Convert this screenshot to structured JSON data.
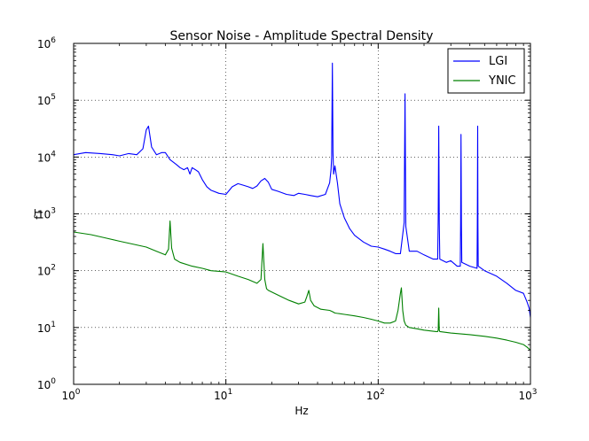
{
  "chart_data": {
    "type": "line",
    "title": "Sensor Noise - Amplitude Spectral Density",
    "xlabel": "Hz",
    "ylabel": "fT",
    "xscale": "log",
    "yscale": "log",
    "xlim": [
      1,
      1000
    ],
    "ylim": [
      1,
      1000000
    ],
    "grid": true,
    "legend_position": "top-right",
    "x_ticks": [
      {
        "value": 1,
        "base": "10",
        "exp": "0"
      },
      {
        "value": 10,
        "base": "10",
        "exp": "1"
      },
      {
        "value": 100,
        "base": "10",
        "exp": "2"
      },
      {
        "value": 1000,
        "base": "10",
        "exp": "3"
      }
    ],
    "y_ticks": [
      {
        "value": 1,
        "base": "10",
        "exp": "0"
      },
      {
        "value": 10,
        "base": "10",
        "exp": "1"
      },
      {
        "value": 100,
        "base": "10",
        "exp": "2"
      },
      {
        "value": 1000,
        "base": "10",
        "exp": "3"
      },
      {
        "value": 10000,
        "base": "10",
        "exp": "4"
      },
      {
        "value": 100000,
        "base": "10",
        "exp": "5"
      },
      {
        "value": 1000000,
        "base": "10",
        "exp": "6"
      }
    ],
    "series": [
      {
        "name": "LGI",
        "color": "#0000ff",
        "x": [
          1,
          1.2,
          1.5,
          1.8,
          2,
          2.3,
          2.6,
          2.85,
          3.0,
          3.1,
          3.25,
          3.5,
          3.8,
          4.0,
          4.3,
          4.7,
          5.0,
          5.3,
          5.6,
          5.8,
          6.0,
          6.3,
          6.6,
          7.0,
          7.5,
          8,
          9,
          10,
          11,
          12,
          13,
          14,
          15,
          16,
          17,
          18,
          19,
          20,
          22,
          25,
          28,
          30,
          33,
          36,
          40,
          45,
          48,
          49,
          49.5,
          50,
          50.5,
          51,
          52,
          54,
          56,
          60,
          65,
          70,
          80,
          90,
          100,
          110,
          120,
          130,
          140,
          148,
          150,
          152,
          160,
          180,
          200,
          230,
          246,
          248,
          250,
          252,
          254,
          280,
          300,
          330,
          346,
          348,
          350,
          352,
          354,
          400,
          446,
          448,
          450,
          452,
          454,
          500,
          600,
          700,
          800,
          900,
          950,
          980,
          1000
        ],
        "y": [
          11000,
          12000,
          11500,
          11000,
          10500,
          11500,
          11000,
          14000,
          30000,
          35000,
          15000,
          11000,
          12000,
          12000,
          9000,
          7500,
          6500,
          6000,
          6500,
          5000,
          6500,
          6000,
          5500,
          4000,
          3000,
          2600,
          2300,
          2200,
          3000,
          3400,
          3200,
          3000,
          2800,
          3100,
          3800,
          4200,
          3600,
          2700,
          2500,
          2200,
          2100,
          2300,
          2200,
          2100,
          2000,
          2200,
          3500,
          6000,
          10000,
          450000,
          12000,
          5000,
          7000,
          3500,
          1500,
          850,
          550,
          420,
          320,
          270,
          260,
          240,
          220,
          200,
          200,
          700,
          130000,
          600,
          220,
          220,
          190,
          160,
          160,
          800,
          35000,
          700,
          160,
          140,
          150,
          120,
          120,
          700,
          25000,
          600,
          140,
          120,
          110,
          600,
          35000,
          600,
          120,
          100,
          80,
          60,
          45,
          40,
          28,
          22,
          15
        ]
      },
      {
        "name": "YNIC",
        "color": "#008000",
        "x": [
          1,
          1.3,
          1.6,
          2,
          2.5,
          3,
          3.5,
          4,
          4.2,
          4.3,
          4.4,
          4.6,
          5,
          6,
          7,
          8,
          10,
          12,
          14,
          16,
          17,
          17.5,
          18,
          18.5,
          19,
          20,
          23,
          26,
          30,
          33,
          34,
          35,
          36,
          38,
          42,
          48,
          50,
          52,
          60,
          70,
          80,
          90,
          100,
          110,
          120,
          130,
          135,
          140,
          142,
          145,
          148,
          152,
          160,
          180,
          200,
          240,
          246,
          248,
          250,
          252,
          254,
          300,
          400,
          500,
          600,
          700,
          800,
          900,
          950,
          1000
        ],
        "y": [
          480,
          430,
          380,
          330,
          290,
          260,
          220,
          190,
          240,
          750,
          250,
          160,
          140,
          120,
          110,
          100,
          95,
          80,
          70,
          60,
          70,
          300,
          70,
          48,
          45,
          42,
          35,
          30,
          26,
          28,
          35,
          45,
          30,
          24,
          21,
          20,
          19,
          18,
          17,
          16,
          15,
          14,
          13,
          12,
          12,
          13,
          20,
          40,
          50,
          20,
          13,
          11,
          10,
          9.5,
          9,
          8.5,
          8.5,
          9,
          22,
          9,
          8.5,
          8,
          7.5,
          7,
          6.5,
          6,
          5.5,
          5,
          4.5,
          4
        ]
      }
    ]
  }
}
